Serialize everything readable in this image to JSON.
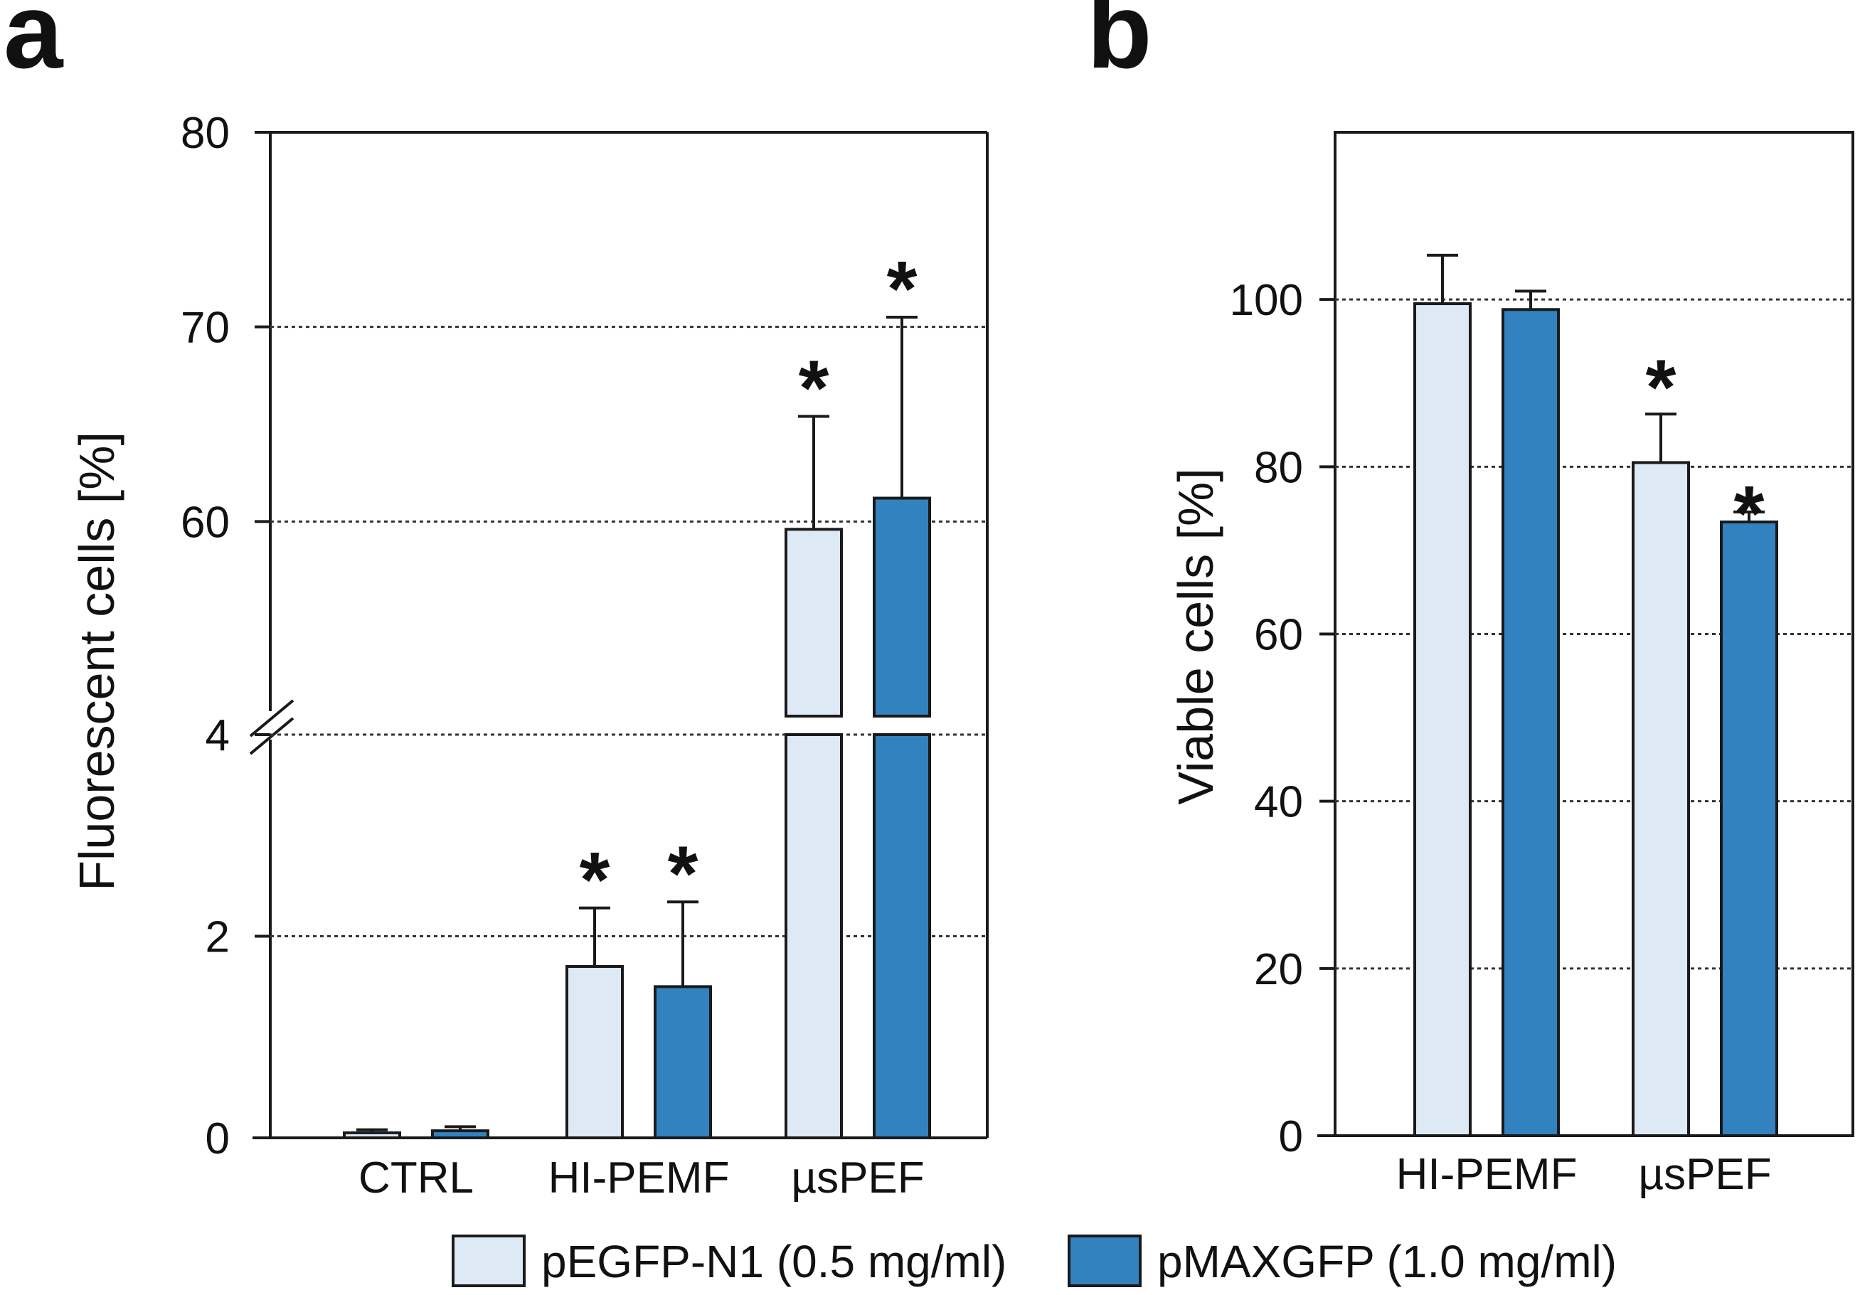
{
  "chart_data": [
    {
      "panel": "a",
      "type": "bar",
      "ylabel": "Fluorescent cells [%]",
      "xlabel": "",
      "axis_break": true,
      "ylim_lower": [
        0,
        4
      ],
      "ylim_upper": [
        50,
        80
      ],
      "yticks_lower": [
        0,
        2,
        4
      ],
      "yticks_upper": [
        60,
        70,
        80
      ],
      "grid": "dotted horizontal",
      "categories": [
        "CTRL",
        "HI-PEMF",
        "µsPEF"
      ],
      "series": [
        {
          "name": "pEGFP-N1 (0.5 mg/ml)",
          "color": "#dde9f5",
          "values": [
            0.05,
            1.7,
            59.6
          ],
          "errors": [
            0.03,
            0.58,
            5.8
          ],
          "significant": [
            false,
            true,
            true
          ]
        },
        {
          "name": "pMAXGFP (1.0 mg/ml)",
          "color": "#3282c0",
          "values": [
            0.07,
            1.5,
            61.2
          ],
          "errors": [
            0.04,
            0.84,
            9.3
          ],
          "significant": [
            false,
            true,
            true
          ]
        }
      ],
      "significance_mark": "*"
    },
    {
      "panel": "b",
      "type": "bar",
      "ylabel": "Viable cells [%]",
      "xlabel": "",
      "ylim": [
        0,
        120
      ],
      "yticks": [
        0,
        20,
        40,
        60,
        80,
        100
      ],
      "grid": "dotted horizontal",
      "categories": [
        "HI-PEMF",
        "µsPEF"
      ],
      "series": [
        {
          "name": "pEGFP-N1 (0.5 mg/ml)",
          "color": "#dde9f5",
          "values": [
            99.5,
            80.5
          ],
          "errors": [
            5.8,
            5.8
          ],
          "significant": [
            false,
            true
          ]
        },
        {
          "name": "pMAXGFP (1.0 mg/ml)",
          "color": "#3282c0",
          "values": [
            98.8,
            73.4
          ],
          "errors": [
            2.2,
            1.2
          ],
          "significant": [
            false,
            true
          ]
        }
      ],
      "significance_mark": "*"
    }
  ],
  "panel_letters": [
    "a",
    "b"
  ],
  "legend": {
    "items": [
      {
        "label": "pEGFP-N1 (0.5 mg/ml)",
        "color": "#dde9f5"
      },
      {
        "label": "pMAXGFP (1.0 mg/ml)",
        "color": "#3282c0"
      }
    ],
    "placement": "bottom-center"
  }
}
